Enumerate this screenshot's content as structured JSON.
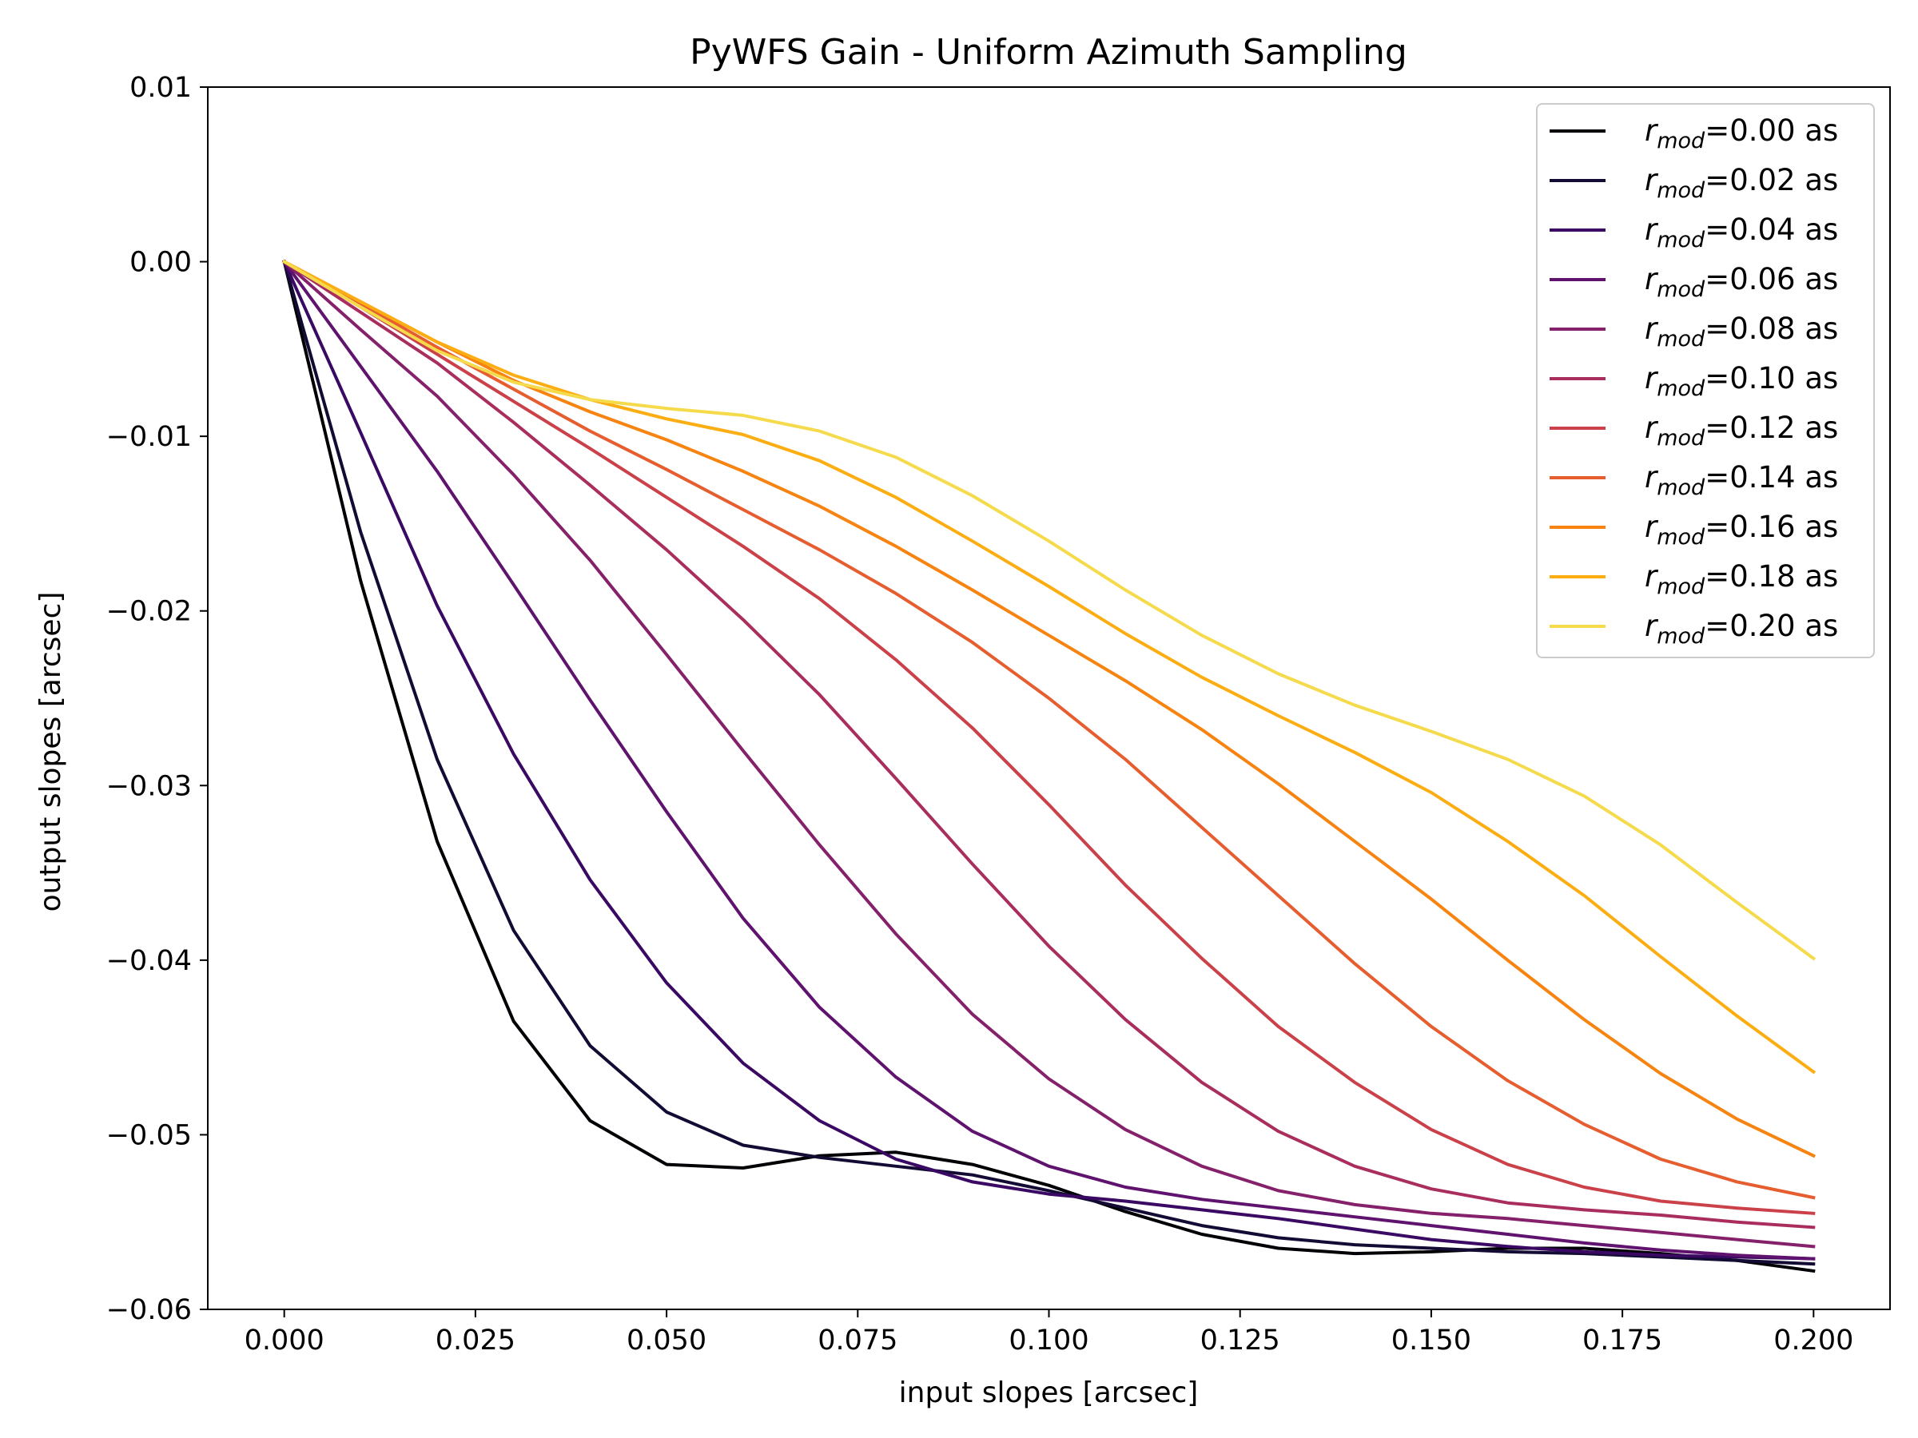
{
  "chart_data": {
    "type": "line",
    "title": "PyWFS Gain - Uniform Azimuth Sampling",
    "xlabel": "input slopes [arcsec]",
    "ylabel": "output slopes [arcsec]",
    "xlim": [
      -0.01,
      0.21
    ],
    "ylim": [
      -0.06,
      0.01
    ],
    "xticks": [
      0.0,
      0.025,
      0.05,
      0.075,
      0.1,
      0.125,
      0.15,
      0.175,
      0.2
    ],
    "xtick_labels": [
      "0.000",
      "0.025",
      "0.050",
      "0.075",
      "0.100",
      "0.125",
      "0.150",
      "0.175",
      "0.200"
    ],
    "yticks": [
      0.01,
      0.0,
      -0.01,
      -0.02,
      -0.03,
      -0.04,
      -0.05,
      -0.06
    ],
    "ytick_labels": [
      "0.01",
      "0.00",
      "−0.01",
      "−0.02",
      "−0.03",
      "−0.04",
      "−0.05",
      "−0.06"
    ],
    "grid": false,
    "legend_position": "top-right",
    "x": [
      0.0,
      0.01,
      0.02,
      0.03,
      0.04,
      0.05,
      0.06,
      0.07,
      0.08,
      0.09,
      0.1,
      0.11,
      0.12,
      0.13,
      0.14,
      0.15,
      0.16,
      0.17,
      0.18,
      0.19,
      0.2
    ],
    "series": [
      {
        "name_main": "r",
        "name_sub": "mod",
        "name_rest": "=0.00 as",
        "color": "#000004",
        "values": [
          0.0,
          -0.0183,
          -0.0332,
          -0.0435,
          -0.0492,
          -0.0517,
          -0.0519,
          -0.0512,
          -0.051,
          -0.0517,
          -0.0529,
          -0.0544,
          -0.0557,
          -0.0565,
          -0.0568,
          -0.0567,
          -0.0565,
          -0.0565,
          -0.0568,
          -0.0572,
          -0.0578
        ]
      },
      {
        "name_main": "r",
        "name_sub": "mod",
        "name_rest": "=0.02 as",
        "color": "#140b35",
        "values": [
          0.0,
          -0.0155,
          -0.0285,
          -0.0383,
          -0.0449,
          -0.0487,
          -0.0506,
          -0.0513,
          -0.0518,
          -0.0523,
          -0.0532,
          -0.0542,
          -0.0552,
          -0.0559,
          -0.0563,
          -0.0565,
          -0.0567,
          -0.0568,
          -0.057,
          -0.0572,
          -0.0574
        ]
      },
      {
        "name_main": "r",
        "name_sub": "mod",
        "name_rest": "=0.04 as",
        "color": "#3a0963",
        "values": [
          0.0,
          -0.0098,
          -0.0197,
          -0.0282,
          -0.0354,
          -0.0413,
          -0.0459,
          -0.0492,
          -0.0514,
          -0.0527,
          -0.0534,
          -0.0538,
          -0.0543,
          -0.0548,
          -0.0554,
          -0.056,
          -0.0564,
          -0.0567,
          -0.0569,
          -0.057,
          -0.0571
        ]
      },
      {
        "name_main": "r",
        "name_sub": "mod",
        "name_rest": "=0.06 as",
        "color": "#5f136e",
        "values": [
          0.0,
          -0.006,
          -0.012,
          -0.0185,
          -0.0251,
          -0.0315,
          -0.0376,
          -0.0427,
          -0.0467,
          -0.0498,
          -0.0518,
          -0.053,
          -0.0537,
          -0.0542,
          -0.0547,
          -0.0552,
          -0.0557,
          -0.0562,
          -0.0566,
          -0.0569,
          -0.0571
        ]
      },
      {
        "name_main": "r",
        "name_sub": "mod",
        "name_rest": "=0.08 as",
        "color": "#85216b",
        "values": [
          0.0,
          -0.0039,
          -0.0077,
          -0.0122,
          -0.0171,
          -0.0225,
          -0.028,
          -0.0334,
          -0.0385,
          -0.0431,
          -0.0468,
          -0.0497,
          -0.0518,
          -0.0532,
          -0.054,
          -0.0545,
          -0.0548,
          -0.0552,
          -0.0556,
          -0.056,
          -0.0564
        ]
      },
      {
        "name_main": "r",
        "name_sub": "mod",
        "name_rest": "=0.10 as",
        "color": "#a92e5e",
        "values": [
          0.0,
          -0.0029,
          -0.0058,
          -0.0092,
          -0.0128,
          -0.0165,
          -0.0205,
          -0.0248,
          -0.0296,
          -0.0345,
          -0.0392,
          -0.0434,
          -0.047,
          -0.0498,
          -0.0518,
          -0.0531,
          -0.0539,
          -0.0543,
          -0.0546,
          -0.055,
          -0.0553
        ]
      },
      {
        "name_main": "r",
        "name_sub": "mod",
        "name_rest": "=0.12 as",
        "color": "#cb4149",
        "values": [
          0.0,
          -0.0026,
          -0.0053,
          -0.008,
          -0.0107,
          -0.0135,
          -0.0163,
          -0.0193,
          -0.0228,
          -0.0267,
          -0.0311,
          -0.0357,
          -0.0399,
          -0.0438,
          -0.047,
          -0.0497,
          -0.0517,
          -0.053,
          -0.0538,
          -0.0542,
          -0.0545
        ]
      },
      {
        "name_main": "r",
        "name_sub": "mod",
        "name_rest": "=0.14 as",
        "color": "#e65d2f",
        "values": [
          0.0,
          -0.0024,
          -0.0049,
          -0.0073,
          -0.0097,
          -0.0119,
          -0.0142,
          -0.0165,
          -0.019,
          -0.0218,
          -0.025,
          -0.0285,
          -0.0324,
          -0.0363,
          -0.0402,
          -0.0438,
          -0.0469,
          -0.0494,
          -0.0514,
          -0.0527,
          -0.0536
        ]
      },
      {
        "name_main": "r",
        "name_sub": "mod",
        "name_rest": "=0.16 as",
        "color": "#f78311",
        "values": [
          0.0,
          -0.0023,
          -0.0046,
          -0.0068,
          -0.0086,
          -0.0102,
          -0.012,
          -0.014,
          -0.0163,
          -0.0188,
          -0.0214,
          -0.024,
          -0.0268,
          -0.0299,
          -0.0332,
          -0.0365,
          -0.04,
          -0.0434,
          -0.0465,
          -0.0491,
          -0.0512
        ]
      },
      {
        "name_main": "r",
        "name_sub": "mod",
        "name_rest": "=0.18 as",
        "color": "#fcad12",
        "values": [
          0.0,
          -0.0023,
          -0.0046,
          -0.0065,
          -0.0079,
          -0.009,
          -0.0099,
          -0.0114,
          -0.0135,
          -0.016,
          -0.0186,
          -0.0213,
          -0.0238,
          -0.026,
          -0.0281,
          -0.0304,
          -0.0332,
          -0.0363,
          -0.0398,
          -0.0432,
          -0.0464
        ]
      },
      {
        "name_main": "r",
        "name_sub": "mod",
        "name_rest": "=0.20 as",
        "color": "#f5db4c",
        "values": [
          0.0,
          -0.0026,
          -0.0051,
          -0.0069,
          -0.0079,
          -0.0084,
          -0.0088,
          -0.0097,
          -0.0112,
          -0.0134,
          -0.016,
          -0.0188,
          -0.0214,
          -0.0236,
          -0.0254,
          -0.0269,
          -0.0285,
          -0.0306,
          -0.0334,
          -0.0367,
          -0.0399
        ]
      }
    ]
  }
}
